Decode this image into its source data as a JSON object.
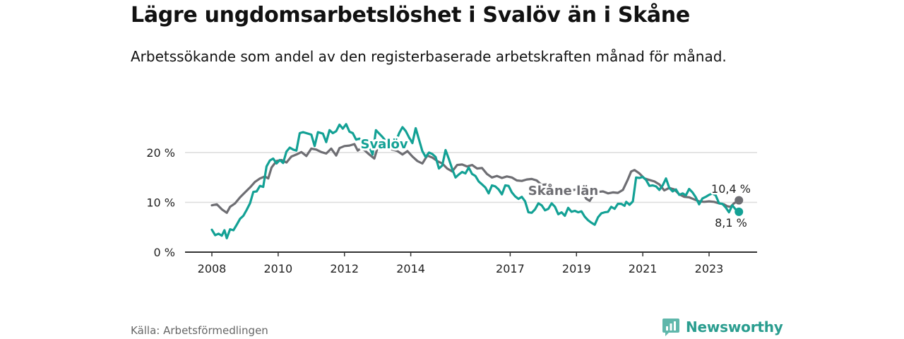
{
  "header": {
    "title": "Lägre ungdomsarbetslöshet i Svalöv än i Skåne",
    "subtitle": "Arbetssökande som andel av den registerbaserade arbetskraften månad för månad."
  },
  "footer": {
    "source": "Källa: Arbetsförmedlingen",
    "brand": "Newsworthy"
  },
  "colors": {
    "svalov": "#13a195",
    "skane": "#6e6e73",
    "grid": "#dcdcdc",
    "axis": "#333333",
    "brand": "#2a9d8f"
  },
  "chart_data": {
    "type": "line",
    "title": "Lägre ungdomsarbetslöshet i Svalöv än i Skåne",
    "xlabel": "",
    "ylabel": "",
    "xlim": [
      2007.9,
      2024.8
    ],
    "ylim": [
      0,
      20
    ],
    "y_ticks": [
      0,
      10,
      20
    ],
    "y_tick_labels": [
      "0 %",
      "10 %",
      "20 %"
    ],
    "x_ticks": [
      2008,
      2010,
      2012,
      2014,
      2017,
      2019,
      2021,
      2023
    ],
    "x_tick_labels": [
      "2008",
      "2010",
      "2012",
      "2014",
      "2017",
      "2019",
      "2021",
      "2023"
    ],
    "grid": true,
    "series": [
      {
        "name": "Skåne län",
        "label": "Skåne län",
        "end_label": "10,4 %",
        "points": [
          [
            2008.0,
            9.4
          ],
          [
            2008.15,
            9.6
          ],
          [
            2008.3,
            8.6
          ],
          [
            2008.45,
            7.9
          ],
          [
            2008.55,
            9.1
          ],
          [
            2008.7,
            9.8
          ],
          [
            2008.85,
            11.0
          ],
          [
            2009.0,
            12.0
          ],
          [
            2009.15,
            13.0
          ],
          [
            2009.3,
            14.1
          ],
          [
            2009.45,
            14.8
          ],
          [
            2009.6,
            15.2
          ],
          [
            2009.7,
            14.8
          ],
          [
            2009.8,
            17.0
          ],
          [
            2009.95,
            18.3
          ],
          [
            2010.1,
            18.5
          ],
          [
            2010.25,
            18.0
          ],
          [
            2010.4,
            19.2
          ],
          [
            2010.55,
            19.6
          ],
          [
            2010.7,
            20.1
          ],
          [
            2010.85,
            19.3
          ],
          [
            2011.0,
            20.8
          ],
          [
            2011.15,
            20.6
          ],
          [
            2011.3,
            20.1
          ],
          [
            2011.45,
            19.8
          ],
          [
            2011.6,
            20.8
          ],
          [
            2011.75,
            19.4
          ],
          [
            2011.85,
            20.9
          ],
          [
            2012.0,
            21.3
          ],
          [
            2012.15,
            21.4
          ],
          [
            2012.3,
            21.7
          ],
          [
            2012.4,
            20.4
          ],
          [
            2012.5,
            20.9
          ],
          [
            2012.6,
            20.5
          ],
          [
            2012.75,
            19.6
          ],
          [
            2012.9,
            18.8
          ],
          [
            2013.0,
            21.0
          ],
          [
            2013.15,
            21.2
          ],
          [
            2013.3,
            20.9
          ],
          [
            2013.45,
            20.6
          ],
          [
            2013.6,
            20.3
          ],
          [
            2013.75,
            19.6
          ],
          [
            2013.9,
            20.3
          ],
          [
            2014.05,
            19.2
          ],
          [
            2014.2,
            18.3
          ],
          [
            2014.35,
            17.8
          ],
          [
            2014.5,
            19.4
          ],
          [
            2014.65,
            19.0
          ],
          [
            2014.8,
            18.3
          ],
          [
            2014.95,
            17.8
          ],
          [
            2015.1,
            16.8
          ],
          [
            2015.25,
            16.2
          ],
          [
            2015.4,
            17.5
          ],
          [
            2015.55,
            17.6
          ],
          [
            2015.7,
            17.2
          ],
          [
            2015.85,
            17.5
          ],
          [
            2016.0,
            16.8
          ],
          [
            2016.15,
            16.9
          ],
          [
            2016.3,
            15.7
          ],
          [
            2016.45,
            15.0
          ],
          [
            2016.6,
            15.3
          ],
          [
            2016.75,
            14.9
          ],
          [
            2016.9,
            15.2
          ],
          [
            2017.05,
            15.0
          ],
          [
            2017.2,
            14.4
          ],
          [
            2017.35,
            14.3
          ],
          [
            2017.5,
            14.6
          ],
          [
            2017.65,
            14.7
          ],
          [
            2017.8,
            14.4
          ],
          [
            2017.95,
            13.5
          ],
          [
            2018.1,
            13.6
          ],
          [
            2018.25,
            13.1
          ],
          [
            2018.4,
            12.8
          ],
          [
            2018.55,
            12.6
          ],
          [
            2018.7,
            12.8
          ],
          [
            2018.85,
            12.4
          ],
          [
            2019.0,
            12.6
          ],
          [
            2019.15,
            12.3
          ],
          [
            2019.3,
            10.7
          ],
          [
            2019.4,
            10.3
          ],
          [
            2019.5,
            11.4
          ],
          [
            2019.65,
            12.1
          ],
          [
            2019.8,
            12.2
          ],
          [
            2019.95,
            11.8
          ],
          [
            2020.1,
            12.0
          ],
          [
            2020.25,
            11.9
          ],
          [
            2020.4,
            12.5
          ],
          [
            2020.55,
            14.6
          ],
          [
            2020.65,
            16.2
          ],
          [
            2020.75,
            16.5
          ],
          [
            2020.9,
            15.8
          ],
          [
            2021.05,
            14.8
          ],
          [
            2021.2,
            14.5
          ],
          [
            2021.35,
            14.2
          ],
          [
            2021.5,
            13.6
          ],
          [
            2021.65,
            12.4
          ],
          [
            2021.8,
            12.9
          ],
          [
            2021.95,
            12.6
          ],
          [
            2022.1,
            11.6
          ],
          [
            2022.25,
            11.1
          ],
          [
            2022.4,
            11.0
          ],
          [
            2022.55,
            10.6
          ],
          [
            2022.7,
            10.2
          ],
          [
            2022.85,
            10.1
          ],
          [
            2023.0,
            10.2
          ],
          [
            2023.15,
            10.1
          ],
          [
            2023.3,
            9.8
          ],
          [
            2023.45,
            9.6
          ],
          [
            2023.55,
            9.2
          ],
          [
            2023.65,
            9.1
          ],
          [
            2023.75,
            9.8
          ],
          [
            2023.9,
            10.4
          ]
        ]
      },
      {
        "name": "Svalöv",
        "label": "Svalöv",
        "end_label": "8,1 %",
        "points": [
          [
            2008.0,
            4.5
          ],
          [
            2008.1,
            3.4
          ],
          [
            2008.2,
            3.7
          ],
          [
            2008.3,
            3.3
          ],
          [
            2008.38,
            4.4
          ],
          [
            2008.45,
            2.8
          ],
          [
            2008.55,
            4.6
          ],
          [
            2008.65,
            4.4
          ],
          [
            2008.75,
            5.5
          ],
          [
            2008.85,
            6.7
          ],
          [
            2008.95,
            7.3
          ],
          [
            2009.05,
            8.5
          ],
          [
            2009.15,
            9.8
          ],
          [
            2009.25,
            12.1
          ],
          [
            2009.35,
            12.2
          ],
          [
            2009.45,
            13.3
          ],
          [
            2009.55,
            13.1
          ],
          [
            2009.65,
            17.2
          ],
          [
            2009.75,
            18.4
          ],
          [
            2009.85,
            18.8
          ],
          [
            2009.95,
            17.8
          ],
          [
            2010.05,
            18.5
          ],
          [
            2010.15,
            17.9
          ],
          [
            2010.25,
            20.2
          ],
          [
            2010.35,
            21.0
          ],
          [
            2010.45,
            20.6
          ],
          [
            2010.55,
            20.4
          ],
          [
            2010.65,
            23.9
          ],
          [
            2010.75,
            24.1
          ],
          [
            2010.9,
            23.8
          ],
          [
            2011.0,
            23.6
          ],
          [
            2011.1,
            21.3
          ],
          [
            2011.2,
            24.1
          ],
          [
            2011.35,
            23.8
          ],
          [
            2011.45,
            22.1
          ],
          [
            2011.55,
            24.5
          ],
          [
            2011.65,
            23.9
          ],
          [
            2011.75,
            24.3
          ],
          [
            2011.85,
            25.6
          ],
          [
            2011.95,
            24.8
          ],
          [
            2012.05,
            25.7
          ],
          [
            2012.15,
            24.2
          ],
          [
            2012.25,
            23.9
          ],
          [
            2012.35,
            22.6
          ],
          [
            2012.45,
            22.8
          ],
          [
            2012.55,
            21.9
          ],
          [
            2012.65,
            22.8
          ],
          [
            2012.75,
            21.2
          ],
          [
            2012.85,
            19.6
          ],
          [
            2012.95,
            24.5
          ],
          [
            2013.05,
            23.8
          ],
          [
            2013.15,
            23.1
          ],
          [
            2013.25,
            22.3
          ],
          [
            2013.35,
            21.4
          ],
          [
            2013.45,
            22.6
          ],
          [
            2013.55,
            22.2
          ],
          [
            2013.65,
            23.9
          ],
          [
            2013.75,
            25.1
          ],
          [
            2013.85,
            24.3
          ],
          [
            2013.95,
            23.0
          ],
          [
            2014.05,
            21.9
          ],
          [
            2014.15,
            24.9
          ],
          [
            2014.25,
            22.6
          ],
          [
            2014.35,
            20.3
          ],
          [
            2014.45,
            19.1
          ],
          [
            2014.55,
            20.0
          ],
          [
            2014.65,
            19.7
          ],
          [
            2014.75,
            19.1
          ],
          [
            2014.85,
            16.8
          ],
          [
            2014.95,
            17.4
          ],
          [
            2015.05,
            20.5
          ],
          [
            2015.15,
            18.7
          ],
          [
            2015.25,
            16.7
          ],
          [
            2015.35,
            15.0
          ],
          [
            2015.45,
            15.6
          ],
          [
            2015.55,
            16.1
          ],
          [
            2015.65,
            15.8
          ],
          [
            2015.75,
            17.0
          ],
          [
            2015.85,
            15.7
          ],
          [
            2015.95,
            15.3
          ],
          [
            2016.05,
            14.2
          ],
          [
            2016.15,
            13.6
          ],
          [
            2016.25,
            13.0
          ],
          [
            2016.35,
            11.8
          ],
          [
            2016.45,
            13.4
          ],
          [
            2016.55,
            13.2
          ],
          [
            2016.65,
            12.6
          ],
          [
            2016.75,
            11.6
          ],
          [
            2016.85,
            13.4
          ],
          [
            2016.95,
            13.3
          ],
          [
            2017.05,
            12.0
          ],
          [
            2017.15,
            11.2
          ],
          [
            2017.25,
            10.7
          ],
          [
            2017.35,
            11.1
          ],
          [
            2017.45,
            10.2
          ],
          [
            2017.55,
            8.0
          ],
          [
            2017.65,
            7.9
          ],
          [
            2017.75,
            8.6
          ],
          [
            2017.85,
            9.8
          ],
          [
            2017.95,
            9.4
          ],
          [
            2018.05,
            8.4
          ],
          [
            2018.15,
            8.7
          ],
          [
            2018.25,
            9.8
          ],
          [
            2018.35,
            9.1
          ],
          [
            2018.45,
            7.6
          ],
          [
            2018.55,
            8.0
          ],
          [
            2018.65,
            7.3
          ],
          [
            2018.75,
            8.9
          ],
          [
            2018.85,
            8.1
          ],
          [
            2018.95,
            8.3
          ],
          [
            2019.05,
            8.0
          ],
          [
            2019.15,
            8.2
          ],
          [
            2019.25,
            7.1
          ],
          [
            2019.35,
            6.4
          ],
          [
            2019.45,
            5.9
          ],
          [
            2019.55,
            5.5
          ],
          [
            2019.65,
            7.0
          ],
          [
            2019.75,
            7.8
          ],
          [
            2019.85,
            8.0
          ],
          [
            2019.95,
            8.1
          ],
          [
            2020.05,
            9.1
          ],
          [
            2020.15,
            8.7
          ],
          [
            2020.25,
            9.7
          ],
          [
            2020.35,
            9.7
          ],
          [
            2020.45,
            9.3
          ],
          [
            2020.5,
            10.1
          ],
          [
            2020.6,
            9.5
          ],
          [
            2020.7,
            10.2
          ],
          [
            2020.8,
            15.0
          ],
          [
            2020.9,
            14.9
          ],
          [
            2021.0,
            15.1
          ],
          [
            2021.1,
            14.5
          ],
          [
            2021.2,
            13.3
          ],
          [
            2021.3,
            13.4
          ],
          [
            2021.4,
            13.2
          ],
          [
            2021.5,
            12.5
          ],
          [
            2021.6,
            13.4
          ],
          [
            2021.7,
            14.8
          ],
          [
            2021.8,
            12.9
          ],
          [
            2021.9,
            12.2
          ],
          [
            2022.0,
            12.6
          ],
          [
            2022.1,
            11.5
          ],
          [
            2022.2,
            11.8
          ],
          [
            2022.3,
            11.4
          ],
          [
            2022.4,
            12.7
          ],
          [
            2022.5,
            12.0
          ],
          [
            2022.6,
            11.0
          ],
          [
            2022.7,
            9.6
          ],
          [
            2022.8,
            10.8
          ],
          [
            2022.9,
            11.1
          ],
          [
            2023.0,
            11.5
          ],
          [
            2023.1,
            11.8
          ],
          [
            2023.2,
            11.4
          ],
          [
            2023.3,
            9.8
          ],
          [
            2023.4,
            9.7
          ],
          [
            2023.5,
            9.0
          ],
          [
            2023.6,
            8.0
          ],
          [
            2023.7,
            9.4
          ],
          [
            2023.8,
            8.6
          ],
          [
            2023.9,
            8.1
          ]
        ]
      }
    ]
  }
}
